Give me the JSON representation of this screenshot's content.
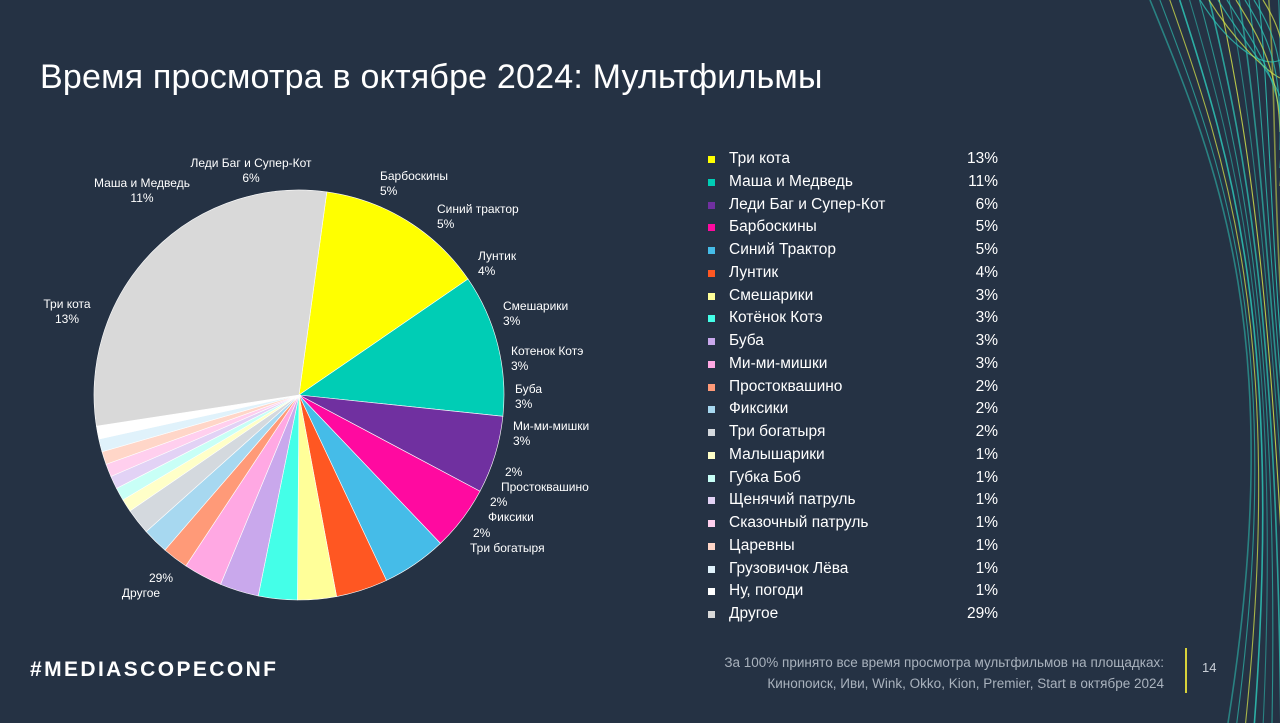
{
  "slide": {
    "title": "Время просмотра в октябре 2024: Мультфильмы",
    "hashtag": "#MEDIASCOPECONF",
    "footnote_line1": "За 100% принято все время просмотра мультфильмов на площадках:",
    "footnote_line2": "Кинопоиск, Иви, Wink, Okko, Kion, Premier, Start в октябре 2024",
    "page_number": "14",
    "colors": {
      "background": "#253244",
      "accent_bar": "#d8d23a",
      "decor_lines": [
        "#2ec4b6",
        "#d4e04a"
      ]
    }
  },
  "chart_data": {
    "type": "pie",
    "title": "Время просмотра в октябре 2024: Мультфильмы",
    "categories": [
      "Три кота",
      "Маша и Медведь",
      "Леди Баг и Супер-Кот",
      "Барбоскины",
      "Синий Трактор",
      "Лунтик",
      "Смешарики",
      "Котёнок Котэ",
      "Буба",
      "Ми-ми-мишки",
      "Простоквашино",
      "Фиксики",
      "Три богатыря",
      "Малышарики",
      "Губка Боб",
      "Щенячий патруль",
      "Сказочный патруль",
      "Царевны",
      "Грузовичок Лёва",
      "Ну, погоди",
      "Другое"
    ],
    "values": [
      13,
      11,
      6,
      5,
      5,
      4,
      3,
      3,
      3,
      3,
      2,
      2,
      2,
      1,
      1,
      1,
      1,
      1,
      1,
      1,
      29
    ],
    "value_labels": [
      "13%",
      "11%",
      "6%",
      "5%",
      "5%",
      "4%",
      "3%",
      "3%",
      "3%",
      "3%",
      "2%",
      "2%",
      "2%",
      "1%",
      "1%",
      "1%",
      "1%",
      "1%",
      "1%",
      "1%",
      "29%"
    ],
    "colors": [
      "#ffff00",
      "#00cdb5",
      "#7030a0",
      "#ff0aa0",
      "#45bce8",
      "#ff5722",
      "#ffff99",
      "#44ffe8",
      "#c9a8ec",
      "#ffa8e3",
      "#ff9a78",
      "#a7d8f0",
      "#d4d9de",
      "#ffffc8",
      "#c8fff6",
      "#e2d2f5",
      "#ffcfee",
      "#ffd6c8",
      "#e0f2fb",
      "#ffffff",
      "#d9d9d9"
    ],
    "slice_labels": [
      {
        "name": "Три кота",
        "value": "13%"
      },
      {
        "name": "Маша и Медведь",
        "value": "11%"
      },
      {
        "name": "Леди Баг и Супер-Кот",
        "value": "6%"
      },
      {
        "name": "Барбоскины",
        "value": "5%"
      },
      {
        "name": "Синий трактор",
        "value": "5%"
      },
      {
        "name": "Лунтик",
        "value": "4%"
      },
      {
        "name": "Смешарики",
        "value": "3%"
      },
      {
        "name": "Котенок Котэ",
        "value": "3%"
      },
      {
        "name": "Буба",
        "value": "3%"
      },
      {
        "name": "Ми-ми-мишки",
        "value": "3%"
      },
      {
        "name": "Простоквашино",
        "value": "2%"
      },
      {
        "name": "Фиксики",
        "value": "2%"
      },
      {
        "name": "Три богатыря",
        "value": "2%"
      },
      {
        "name": "Другое",
        "value": "29%"
      }
    ],
    "legend_position": "right"
  }
}
